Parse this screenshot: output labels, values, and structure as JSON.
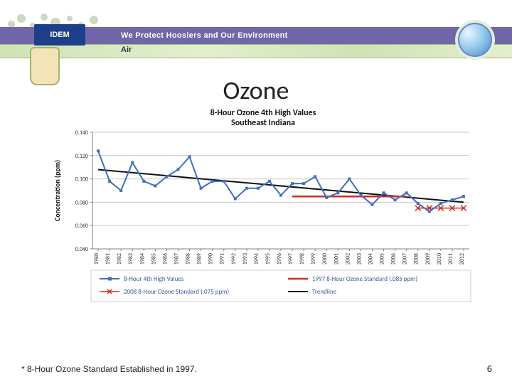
{
  "header": {
    "dept_abbrev": "IDEM",
    "tagline": "We Protect Hoosiers and Our Environment",
    "subline": "Air"
  },
  "slide": {
    "title": "Ozone",
    "footnote": "* 8-Hour Ozone Standard Established in 1997.",
    "page_number": "6"
  },
  "chart": {
    "type": "line",
    "title_line1": "8-Hour Ozone 4th High Values",
    "title_line2": "Southeast Indiana",
    "title_fontsize": 12,
    "title_weight": "bold",
    "xlabel": "",
    "ylabel": "Concentration (ppm)",
    "label_fontsize": 10,
    "label_weight": "bold",
    "tick_fontsize": 8,
    "years": [
      "1980",
      "1981",
      "1982",
      "1983",
      "1984",
      "1985",
      "1986",
      "1987",
      "1988",
      "1989",
      "1990",
      "1991",
      "1992",
      "1993",
      "1994",
      "1995",
      "1996",
      "1997",
      "1998",
      "1999",
      "2000",
      "2001",
      "2002",
      "2003",
      "2004",
      "2005",
      "2006",
      "2007",
      "2008",
      "2009",
      "2010",
      "2011",
      "2012"
    ],
    "ylim": [
      0.04,
      0.14
    ],
    "yticks": [
      0.04,
      0.06,
      0.08,
      0.1,
      0.12,
      0.14
    ],
    "ytick_labels": [
      "0.040",
      "0.060",
      "0.080",
      "0.100",
      "0.120",
      "0.140"
    ],
    "grid_color": "#c7c7c7",
    "axis_color": "#808080",
    "background_color": "#ffffff",
    "series": {
      "main": {
        "label": "8-Hour 4th High Values",
        "color": "#3e6fc0",
        "marker": "square",
        "marker_size": 4,
        "line_width": 2,
        "values": [
          0.124,
          0.098,
          0.09,
          0.114,
          0.098,
          0.094,
          0.102,
          0.108,
          0.119,
          0.092,
          0.098,
          0.098,
          0.083,
          0.092,
          0.092,
          0.098,
          0.086,
          0.096,
          0.096,
          0.102,
          0.084,
          0.088,
          0.1,
          0.086,
          0.078,
          0.088,
          0.082,
          0.088,
          0.079,
          0.072,
          0.079,
          0.082,
          0.085
        ]
      },
      "std1997": {
        "label": "1997 8-Hour Ozone Standard (.085 ppm)",
        "color": "#d02a1e",
        "line_width": 2.5,
        "x_start": 1997,
        "x_end": 2007,
        "value": 0.085
      },
      "std2008": {
        "label": "2008 8-Hour Ozone Standard (.075 ppm)",
        "color": "#d02a1e",
        "marker": "x",
        "marker_size": 5,
        "line_width": 1.5,
        "x_start": 2008,
        "x_end": 2012,
        "value": 0.075
      },
      "trend": {
        "label": "Trendline",
        "color": "#101010",
        "line_width": 2,
        "y_start": 0.108,
        "y_end": 0.08
      }
    },
    "legend": {
      "fontsize": 9,
      "color": "#355e9e",
      "items": [
        {
          "key": "main",
          "label": "8-Hour 4th High Values"
        },
        {
          "key": "std1997",
          "label": "1997 8-Hour Ozone Standard (.085 ppm)"
        },
        {
          "key": "std2008",
          "label": "2008 8-Hour Ozone Standard (.075 ppm)"
        },
        {
          "key": "trend",
          "label": "Trendline"
        }
      ]
    }
  }
}
